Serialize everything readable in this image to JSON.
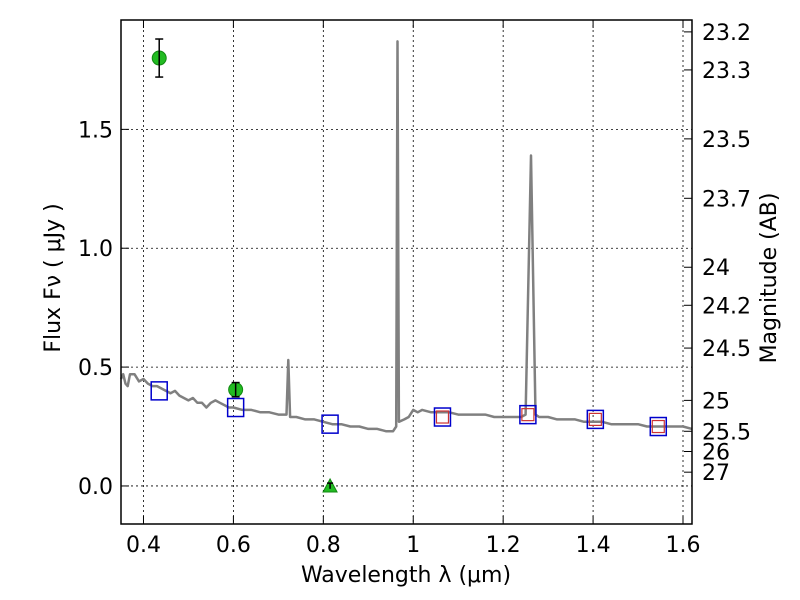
{
  "chart_data": {
    "type": "scatter",
    "xlabel": "Wavelength  λ (μm)",
    "ylabel": "Flux  Fν  ( μJy )",
    "ylabel_right": "Magnitude (AB)",
    "xlim": [
      0.35,
      1.62
    ],
    "ylim": [
      -0.16,
      1.96
    ],
    "x_ticks": [
      0.4,
      0.6,
      0.8,
      1.0,
      1.2,
      1.4,
      1.6
    ],
    "x_tick_labels": [
      "0.4",
      "0.6",
      "0.8",
      "1",
      "1.2",
      "1.4",
      "1.6"
    ],
    "y_ticks": [
      0.0,
      0.5,
      1.0,
      1.5
    ],
    "y_tick_labels": [
      "0.0",
      "0.5",
      "1.0",
      "1.5"
    ],
    "right_ticks": [
      {
        "label": "23.2",
        "flux": 1.91
      },
      {
        "label": "23.3",
        "flux": 1.75
      },
      {
        "label": "23.5",
        "flux": 1.46
      },
      {
        "label": "23.7",
        "flux": 1.21
      },
      {
        "label": "24",
        "flux": 0.92
      },
      {
        "label": "24.2",
        "flux": 0.76
      },
      {
        "label": "24.5",
        "flux": 0.58
      },
      {
        "label": "25",
        "flux": 0.36
      },
      {
        "label": "25.5",
        "flux": 0.23
      },
      {
        "label": "26",
        "flux": 0.145
      },
      {
        "label": "27",
        "flux": 0.058
      }
    ],
    "grid": true,
    "model_spectrum": {
      "color": "#808080",
      "points": [
        [
          0.35,
          0.45
        ],
        [
          0.355,
          0.47
        ],
        [
          0.36,
          0.43
        ],
        [
          0.365,
          0.42
        ],
        [
          0.37,
          0.47
        ],
        [
          0.38,
          0.47
        ],
        [
          0.39,
          0.44
        ],
        [
          0.4,
          0.45
        ],
        [
          0.41,
          0.43
        ],
        [
          0.42,
          0.42
        ],
        [
          0.43,
          0.42
        ],
        [
          0.44,
          0.41
        ],
        [
          0.45,
          0.4
        ],
        [
          0.46,
          0.39
        ],
        [
          0.47,
          0.4
        ],
        [
          0.48,
          0.38
        ],
        [
          0.49,
          0.37
        ],
        [
          0.5,
          0.36
        ],
        [
          0.51,
          0.37
        ],
        [
          0.52,
          0.35
        ],
        [
          0.53,
          0.35
        ],
        [
          0.54,
          0.33
        ],
        [
          0.55,
          0.35
        ],
        [
          0.56,
          0.36
        ],
        [
          0.57,
          0.35
        ],
        [
          0.58,
          0.34
        ],
        [
          0.59,
          0.33
        ],
        [
          0.6,
          0.33
        ],
        [
          0.62,
          0.32
        ],
        [
          0.64,
          0.32
        ],
        [
          0.66,
          0.31
        ],
        [
          0.68,
          0.31
        ],
        [
          0.7,
          0.3
        ],
        [
          0.718,
          0.3
        ],
        [
          0.722,
          0.53
        ],
        [
          0.726,
          0.29
        ],
        [
          0.74,
          0.29
        ],
        [
          0.76,
          0.28
        ],
        [
          0.78,
          0.28
        ],
        [
          0.8,
          0.27
        ],
        [
          0.82,
          0.26
        ],
        [
          0.84,
          0.26
        ],
        [
          0.86,
          0.25
        ],
        [
          0.88,
          0.25
        ],
        [
          0.9,
          0.24
        ],
        [
          0.92,
          0.24
        ],
        [
          0.94,
          0.23
        ],
        [
          0.955,
          0.23
        ],
        [
          0.962,
          0.25
        ],
        [
          0.965,
          1.87
        ],
        [
          0.968,
          0.27
        ],
        [
          0.98,
          0.28
        ],
        [
          0.99,
          0.29
        ],
        [
          1.0,
          0.32
        ],
        [
          1.01,
          0.31
        ],
        [
          1.02,
          0.32
        ],
        [
          1.04,
          0.31
        ],
        [
          1.06,
          0.31
        ],
        [
          1.08,
          0.31
        ],
        [
          1.1,
          0.3
        ],
        [
          1.12,
          0.3
        ],
        [
          1.14,
          0.3
        ],
        [
          1.16,
          0.3
        ],
        [
          1.18,
          0.29
        ],
        [
          1.2,
          0.29
        ],
        [
          1.22,
          0.29
        ],
        [
          1.24,
          0.29
        ],
        [
          1.25,
          0.3
        ],
        [
          1.262,
          1.39
        ],
        [
          1.272,
          0.3
        ],
        [
          1.28,
          0.29
        ],
        [
          1.3,
          0.29
        ],
        [
          1.32,
          0.28
        ],
        [
          1.34,
          0.28
        ],
        [
          1.36,
          0.28
        ],
        [
          1.38,
          0.27
        ],
        [
          1.4,
          0.27
        ],
        [
          1.42,
          0.27
        ],
        [
          1.44,
          0.26
        ],
        [
          1.46,
          0.26
        ],
        [
          1.48,
          0.26
        ],
        [
          1.5,
          0.26
        ],
        [
          1.52,
          0.25
        ],
        [
          1.54,
          0.25
        ],
        [
          1.56,
          0.25
        ],
        [
          1.58,
          0.25
        ],
        [
          1.6,
          0.25
        ],
        [
          1.62,
          0.24
        ]
      ]
    },
    "model_photometry": {
      "marker": "square",
      "color": "#0000cc",
      "points": [
        [
          0.435,
          0.4
        ],
        [
          0.605,
          0.33
        ],
        [
          0.815,
          0.26
        ],
        [
          1.065,
          0.29
        ],
        [
          1.255,
          0.3
        ],
        [
          1.405,
          0.28
        ],
        [
          1.545,
          0.25
        ]
      ]
    },
    "model_photometry_inner": {
      "marker": "square",
      "color": "#cc3333",
      "points": [
        [
          1.065,
          0.29
        ],
        [
          1.255,
          0.3
        ],
        [
          1.405,
          0.28
        ],
        [
          1.545,
          0.25
        ]
      ]
    },
    "observed_detections": {
      "marker": "circle",
      "color": "#22bb22",
      "points": [
        {
          "x": 0.435,
          "y": 1.8,
          "err": 0.08
        },
        {
          "x": 0.605,
          "y": 0.405,
          "err": 0.03
        }
      ]
    },
    "observed_upper_limits": {
      "marker": "triangle",
      "color": "#22bb22",
      "points": [
        {
          "x": 0.815,
          "y": 0.0,
          "err": 0.012
        }
      ]
    }
  }
}
